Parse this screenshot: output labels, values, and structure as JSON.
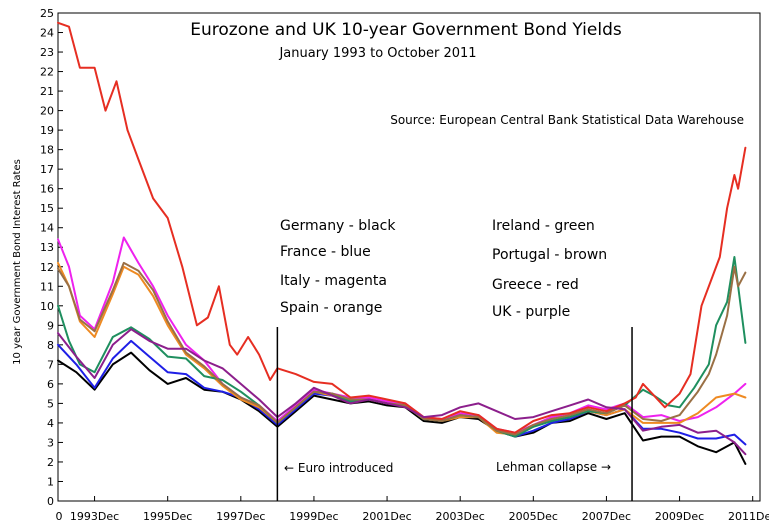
{
  "chart_data": {
    "type": "line",
    "title": "Eurozone and UK 10-year Government Bond Yields",
    "subtitle": "January 1993 to October 2011",
    "source": "Source:  European Central Bank Statistical Data Warehouse",
    "ylabel": "10 year Government Bond Interest Rates",
    "xlim": [
      1993.0,
      2012.2
    ],
    "ylim": [
      0,
      25
    ],
    "x_origin_label": "0",
    "x_ticks": [
      {
        "x": 1994.0,
        "label": "1993Dec"
      },
      {
        "x": 1996.0,
        "label": "1995Dec"
      },
      {
        "x": 1998.0,
        "label": "1997Dec"
      },
      {
        "x": 2000.0,
        "label": "1999Dec"
      },
      {
        "x": 2002.0,
        "label": "2001Dec"
      },
      {
        "x": 2004.0,
        "label": "2003Dec"
      },
      {
        "x": 2006.0,
        "label": "2005Dec"
      },
      {
        "x": 2008.0,
        "label": "2007Dec"
      },
      {
        "x": 2010.0,
        "label": "2009Dec"
      },
      {
        "x": 2012.0,
        "label": "2011Dec"
      }
    ],
    "y_ticks": [
      0,
      1,
      2,
      3,
      4,
      5,
      6,
      7,
      8,
      9,
      10,
      11,
      12,
      13,
      14,
      15,
      16,
      17,
      18,
      19,
      20,
      21,
      22,
      23,
      24,
      25
    ],
    "annotations": [
      {
        "x": 1999.0,
        "label": "← Euro introduced"
      },
      {
        "x": 2008.7,
        "label": "Lehman collapse →"
      }
    ],
    "legend": [
      {
        "label": "Germany - black",
        "color": "#000000"
      },
      {
        "label": "France - blue",
        "color": "#1f1fe6"
      },
      {
        "label": "Italy - magenta",
        "color": "#ee22ee"
      },
      {
        "label": "Spain - orange",
        "color": "#ee8a22"
      },
      {
        "label": "Ireland - green",
        "color": "#1f8f5f"
      },
      {
        "label": "Portugal - brown",
        "color": "#9a7045"
      },
      {
        "label": "Greece - red",
        "color": "#e62e22"
      },
      {
        "label": "UK - purple",
        "color": "#8c1f8c"
      }
    ],
    "series": [
      {
        "key": "germany",
        "color": "#000000",
        "x": [
          1993.0,
          1993.5,
          1994.0,
          1994.5,
          1995.0,
          1995.5,
          1996.0,
          1996.5,
          1997.0,
          1997.5,
          1998.0,
          1998.5,
          1999.0,
          1999.5,
          2000.0,
          2000.5,
          2001.0,
          2001.5,
          2002.0,
          2002.5,
          2003.0,
          2003.5,
          2004.0,
          2004.5,
          2005.0,
          2005.5,
          2006.0,
          2006.5,
          2007.0,
          2007.5,
          2008.0,
          2008.5,
          2009.0,
          2009.5,
          2010.0,
          2010.5,
          2011.0,
          2011.5,
          2011.8
        ],
        "y": [
          7.2,
          6.6,
          5.7,
          7.0,
          7.6,
          6.7,
          6.0,
          6.3,
          5.7,
          5.6,
          5.2,
          4.6,
          3.8,
          4.6,
          5.4,
          5.2,
          5.0,
          5.1,
          4.9,
          4.8,
          4.1,
          4.0,
          4.3,
          4.2,
          3.6,
          3.3,
          3.5,
          4.0,
          4.1,
          4.5,
          4.2,
          4.5,
          3.1,
          3.3,
          3.3,
          2.8,
          2.5,
          3.0,
          1.9
        ]
      },
      {
        "key": "france",
        "color": "#1f1fe6",
        "x": [
          1993.0,
          1993.5,
          1994.0,
          1994.5,
          1995.0,
          1995.5,
          1996.0,
          1996.5,
          1997.0,
          1997.5,
          1998.0,
          1998.5,
          1999.0,
          1999.5,
          2000.0,
          2000.5,
          2001.0,
          2001.5,
          2002.0,
          2002.5,
          2003.0,
          2003.5,
          2004.0,
          2004.5,
          2005.0,
          2005.5,
          2006.0,
          2006.5,
          2007.0,
          2007.5,
          2008.0,
          2008.5,
          2009.0,
          2009.5,
          2010.0,
          2010.5,
          2011.0,
          2011.5,
          2011.8
        ],
        "y": [
          8.0,
          7.0,
          5.8,
          7.3,
          8.2,
          7.4,
          6.6,
          6.5,
          5.8,
          5.6,
          5.3,
          4.7,
          3.9,
          4.7,
          5.5,
          5.4,
          5.1,
          5.2,
          5.0,
          4.9,
          4.2,
          4.1,
          4.4,
          4.3,
          3.7,
          3.3,
          3.6,
          4.0,
          4.2,
          4.6,
          4.4,
          4.7,
          3.7,
          3.7,
          3.5,
          3.2,
          3.2,
          3.4,
          2.9
        ]
      },
      {
        "key": "italy",
        "color": "#ee22ee",
        "x": [
          1993.0,
          1993.3,
          1993.6,
          1994.0,
          1994.5,
          1994.8,
          1995.2,
          1995.6,
          1996.0,
          1996.5,
          1997.0,
          1997.5,
          1998.0,
          1998.5,
          1999.0,
          1999.5,
          2000.0,
          2000.5,
          2001.0,
          2001.5,
          2002.0,
          2002.5,
          2003.0,
          2003.5,
          2004.0,
          2004.5,
          2005.0,
          2005.5,
          2006.0,
          2006.5,
          2007.0,
          2007.5,
          2008.0,
          2008.5,
          2009.0,
          2009.5,
          2010.0,
          2010.5,
          2011.0,
          2011.5,
          2011.8
        ],
        "y": [
          13.4,
          12.0,
          9.5,
          8.8,
          11.2,
          13.5,
          12.2,
          11.0,
          9.5,
          8.0,
          7.2,
          6.0,
          5.3,
          4.9,
          4.1,
          4.9,
          5.7,
          5.5,
          5.3,
          5.3,
          5.1,
          5.0,
          4.3,
          4.2,
          4.5,
          4.4,
          3.7,
          3.5,
          3.9,
          4.3,
          4.5,
          4.9,
          4.7,
          5.0,
          4.3,
          4.4,
          4.1,
          4.3,
          4.8,
          5.5,
          6.0
        ]
      },
      {
        "key": "spain",
        "color": "#ee8a22",
        "x": [
          1993.0,
          1993.3,
          1993.6,
          1994.0,
          1994.5,
          1994.8,
          1995.2,
          1995.6,
          1996.0,
          1996.5,
          1997.0,
          1997.5,
          1998.0,
          1998.5,
          1999.0,
          1999.5,
          2000.0,
          2000.5,
          2001.0,
          2001.5,
          2002.0,
          2002.5,
          2003.0,
          2003.5,
          2004.0,
          2004.5,
          2005.0,
          2005.5,
          2006.0,
          2006.5,
          2007.0,
          2007.5,
          2008.0,
          2008.5,
          2009.0,
          2009.5,
          2010.0,
          2010.5,
          2011.0,
          2011.5,
          2011.8
        ],
        "y": [
          12.2,
          11.0,
          9.2,
          8.4,
          10.6,
          12.0,
          11.6,
          10.5,
          9.0,
          7.5,
          6.8,
          5.9,
          5.2,
          4.8,
          4.0,
          4.8,
          5.6,
          5.4,
          5.2,
          5.2,
          5.0,
          4.9,
          4.2,
          4.1,
          4.3,
          4.3,
          3.5,
          3.4,
          3.8,
          4.2,
          4.3,
          4.6,
          4.4,
          4.7,
          4.0,
          4.0,
          4.0,
          4.5,
          5.3,
          5.5,
          5.3
        ]
      },
      {
        "key": "ireland",
        "color": "#1f8f5f",
        "x": [
          1993.0,
          1993.3,
          1993.6,
          1994.0,
          1994.5,
          1995.0,
          1995.5,
          1996.0,
          1996.5,
          1997.0,
          1997.5,
          1998.0,
          1998.5,
          1999.0,
          1999.5,
          2000.0,
          2000.5,
          2001.0,
          2001.5,
          2002.0,
          2002.5,
          2003.0,
          2003.5,
          2004.0,
          2004.5,
          2005.0,
          2005.5,
          2006.0,
          2006.5,
          2007.0,
          2007.5,
          2008.0,
          2008.5,
          2009.0,
          2009.3,
          2009.7,
          2010.0,
          2010.4,
          2010.8,
          2011.0,
          2011.3,
          2011.5,
          2011.8
        ],
        "y": [
          10.0,
          8.2,
          7.0,
          6.6,
          8.4,
          8.9,
          8.3,
          7.4,
          7.3,
          6.4,
          6.2,
          5.6,
          4.9,
          4.0,
          4.8,
          5.6,
          5.5,
          5.1,
          5.2,
          5.0,
          4.9,
          4.2,
          4.1,
          4.4,
          4.3,
          3.6,
          3.3,
          3.8,
          4.1,
          4.3,
          4.6,
          4.5,
          4.9,
          5.7,
          5.4,
          4.9,
          4.8,
          5.8,
          7.0,
          9.0,
          10.2,
          12.5,
          8.1
        ]
      },
      {
        "key": "portugal",
        "color": "#9a7045",
        "x": [
          1993.0,
          1993.3,
          1993.6,
          1994.0,
          1994.5,
          1994.8,
          1995.2,
          1995.6,
          1996.0,
          1996.5,
          1997.0,
          1997.5,
          1998.0,
          1998.5,
          1999.0,
          1999.5,
          2000.0,
          2000.5,
          2001.0,
          2001.5,
          2002.0,
          2002.5,
          2003.0,
          2003.5,
          2004.0,
          2004.5,
          2005.0,
          2005.5,
          2006.0,
          2006.5,
          2007.0,
          2007.5,
          2008.0,
          2008.5,
          2009.0,
          2009.5,
          2010.0,
          2010.5,
          2010.8,
          2011.0,
          2011.3,
          2011.5,
          2011.6,
          2011.8
        ],
        "y": [
          11.9,
          11.0,
          9.3,
          8.7,
          10.8,
          12.2,
          11.8,
          10.8,
          9.2,
          7.6,
          6.9,
          6.0,
          5.3,
          4.9,
          4.0,
          4.8,
          5.6,
          5.5,
          5.2,
          5.2,
          5.0,
          4.9,
          4.2,
          4.1,
          4.4,
          4.3,
          3.6,
          3.4,
          3.9,
          4.2,
          4.4,
          4.7,
          4.5,
          4.9,
          4.2,
          4.1,
          4.4,
          5.6,
          6.5,
          7.5,
          9.5,
          12.0,
          11.0,
          11.7
        ]
      },
      {
        "key": "greece",
        "color": "#e62e22",
        "x": [
          1993.0,
          1993.3,
          1993.6,
          1994.0,
          1994.3,
          1994.6,
          1994.9,
          1995.2,
          1995.6,
          1996.0,
          1996.4,
          1996.8,
          1997.1,
          1997.4,
          1997.7,
          1997.9,
          1998.2,
          1998.5,
          1998.8,
          1999.0,
          1999.5,
          2000.0,
          2000.5,
          2001.0,
          2001.5,
          2002.0,
          2002.5,
          2003.0,
          2003.5,
          2004.0,
          2004.5,
          2005.0,
          2005.5,
          2006.0,
          2006.5,
          2007.0,
          2007.5,
          2008.0,
          2008.5,
          2008.8,
          2009.0,
          2009.3,
          2009.6,
          2010.0,
          2010.3,
          2010.6,
          2010.9,
          2011.1,
          2011.3,
          2011.5,
          2011.6,
          2011.8
        ],
        "y": [
          24.5,
          24.3,
          22.2,
          22.2,
          20.0,
          21.5,
          19.0,
          17.5,
          15.5,
          14.5,
          12.0,
          9.0,
          9.4,
          11.0,
          8.0,
          7.5,
          8.4,
          7.5,
          6.2,
          6.8,
          6.5,
          6.1,
          6.0,
          5.3,
          5.4,
          5.2,
          5.0,
          4.3,
          4.2,
          4.6,
          4.4,
          3.7,
          3.5,
          4.1,
          4.4,
          4.5,
          4.8,
          4.6,
          5.0,
          5.3,
          6.0,
          5.4,
          4.8,
          5.5,
          6.5,
          10.0,
          11.5,
          12.5,
          15.0,
          16.7,
          16.0,
          18.1
        ]
      },
      {
        "key": "uk",
        "color": "#8c1f8c",
        "x": [
          1993.0,
          1993.5,
          1994.0,
          1994.5,
          1995.0,
          1995.5,
          1996.0,
          1996.5,
          1997.0,
          1997.5,
          1998.0,
          1998.5,
          1999.0,
          1999.5,
          2000.0,
          2000.5,
          2001.0,
          2001.5,
          2002.0,
          2002.5,
          2003.0,
          2003.5,
          2004.0,
          2004.5,
          2005.0,
          2005.5,
          2006.0,
          2006.5,
          2007.0,
          2007.5,
          2008.0,
          2008.5,
          2009.0,
          2009.5,
          2010.0,
          2010.5,
          2011.0,
          2011.5,
          2011.8
        ],
        "y": [
          8.6,
          7.4,
          6.3,
          8.0,
          8.8,
          8.2,
          7.8,
          7.8,
          7.2,
          6.8,
          6.0,
          5.2,
          4.3,
          5.0,
          5.8,
          5.4,
          5.0,
          5.2,
          5.0,
          4.8,
          4.3,
          4.4,
          4.8,
          5.0,
          4.6,
          4.2,
          4.3,
          4.6,
          4.9,
          5.2,
          4.8,
          4.7,
          3.6,
          3.8,
          3.9,
          3.5,
          3.6,
          3.0,
          2.4
        ]
      }
    ]
  }
}
